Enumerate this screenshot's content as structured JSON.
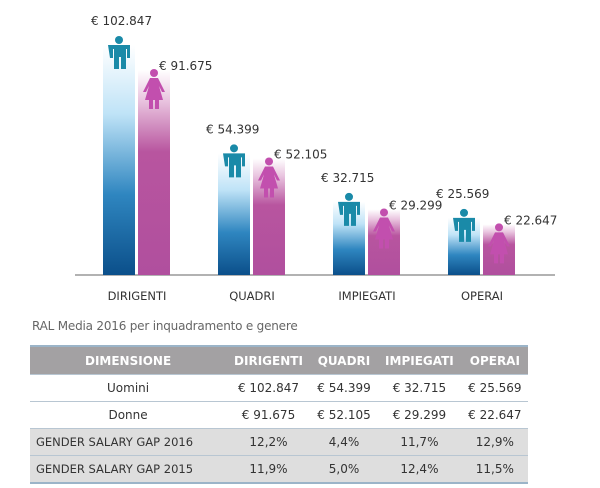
{
  "chart_data": {
    "type": "bar",
    "categories": [
      "DIRIGENTI",
      "QUADRI",
      "IMPIEGATI",
      "OPERAI"
    ],
    "series": [
      {
        "name": "Uomini",
        "values": [
          102847,
          54399,
          32715,
          25569
        ],
        "labels": [
          "€ 102.847",
          "€ 54.399",
          "€ 32.715",
          "€ 25.569"
        ],
        "color": "#1a8aa8",
        "icon": "male-person-icon"
      },
      {
        "name": "Donne",
        "values": [
          91675,
          52105,
          29299,
          22647
        ],
        "labels": [
          "€ 91.675",
          "€ 52.105",
          "€ 29.299",
          "€ 22.647"
        ],
        "color": "#c24fae",
        "icon": "female-person-icon"
      }
    ],
    "ylim": [
      0,
      110000
    ],
    "grid": false
  },
  "table": {
    "title": "RAL Media 2016 per inquadramento e genere",
    "headers": [
      "DIMENSIONE",
      "DIRIGENTI",
      "QUADRI",
      "IMPIEGATI",
      "OPERAI"
    ],
    "rows": [
      [
        "Uomini",
        "€ 102.847",
        "€ 54.399",
        "€ 32.715",
        "€ 25.569"
      ],
      [
        "Donne",
        "€ 91.675",
        "€ 52.105",
        "€ 29.299",
        "€ 22.647"
      ],
      [
        "GENDER SALARY GAP 2016",
        "12,2%",
        "4,4%",
        "11,7%",
        "12,9%"
      ],
      [
        "GENDER SALARY GAP 2015",
        "11,9%",
        "5,0%",
        "12,4%",
        "11,5%"
      ]
    ]
  }
}
